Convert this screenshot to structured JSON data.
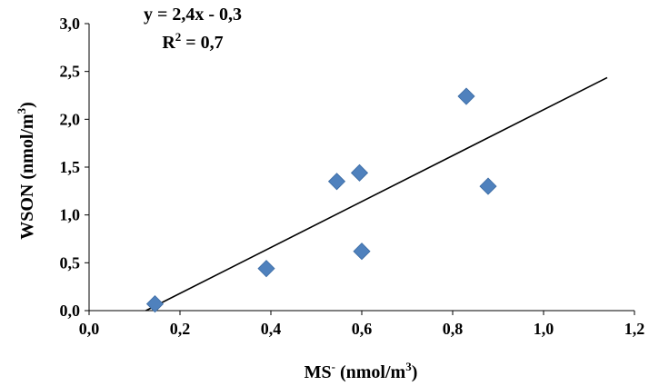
{
  "chart_data": {
    "type": "scatter",
    "xlabel": {
      "main": "MS",
      "sup": "-",
      "rest": " (nmol/m",
      "unit_sup": "3",
      "close": ")"
    },
    "ylabel": {
      "main": "WSON (nmol/m",
      "unit_sup": "3",
      "close": ")"
    },
    "xlim": [
      0,
      1.2
    ],
    "ylim": [
      0,
      3.0
    ],
    "x_ticks": [
      "0,0",
      "0,2",
      "0,4",
      "0,6",
      "0,8",
      "1,0",
      "1,2"
    ],
    "y_ticks": [
      "0,0",
      "0,5",
      "1,0",
      "1,5",
      "2,0",
      "2,5",
      "3,0"
    ],
    "points": [
      {
        "x": 0.145,
        "y": 0.07
      },
      {
        "x": 0.39,
        "y": 0.44
      },
      {
        "x": 0.545,
        "y": 1.35
      },
      {
        "x": 0.595,
        "y": 1.44
      },
      {
        "x": 0.6,
        "y": 0.62
      },
      {
        "x": 0.83,
        "y": 2.24
      },
      {
        "x": 0.878,
        "y": 1.3
      }
    ],
    "marker_color": "#4f81bd",
    "trendline": {
      "slope": 2.4,
      "intercept": -0.3,
      "x_start": 0.125,
      "x_end": 1.14,
      "color": "#000000"
    },
    "equation": "y = 2,4x - 0,3",
    "r_squared": {
      "main": "R",
      "sup": "2",
      "rest": " = 0,7"
    },
    "grid": false,
    "legend": "none"
  }
}
